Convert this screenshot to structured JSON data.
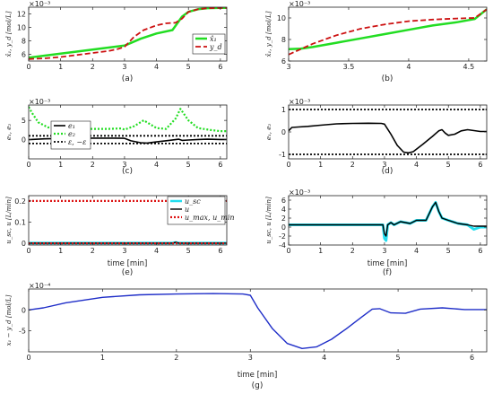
{
  "chart_data": [
    {
      "type": "line",
      "panel_label": "(a)",
      "exponent": "×10⁻³",
      "ylabel": "x̂₁, y_d  [mol/L]",
      "xlim": [
        0,
        6.2
      ],
      "ylim": [
        5,
        13
      ],
      "xticks": [
        0,
        1,
        2,
        3,
        4,
        5,
        6
      ],
      "yticks": [
        6,
        8,
        10,
        12
      ],
      "legend": "center-right",
      "series": [
        {
          "name": "x̂₁",
          "color": "#22dd22",
          "dash": "",
          "width": 2.5,
          "x": [
            0,
            0.5,
            1,
            1.5,
            2,
            2.5,
            3,
            3.2,
            3.5,
            4,
            4.5,
            4.65,
            4.8,
            5,
            5.3,
            5.6,
            6,
            6.2
          ],
          "y": [
            5.5,
            5.8,
            6.1,
            6.4,
            6.7,
            7.0,
            7.3,
            7.7,
            8.3,
            9.1,
            9.6,
            10.6,
            11.6,
            12.3,
            12.7,
            12.85,
            12.9,
            12.9
          ]
        },
        {
          "name": "y_d",
          "color": "#cc1111",
          "dash": "6,3",
          "width": 1.8,
          "x": [
            0,
            0.5,
            1,
            1.5,
            2,
            2.5,
            2.8,
            3,
            3.1,
            3.3,
            3.6,
            4,
            4.3,
            4.6,
            4.8,
            5,
            5.3,
            5.6,
            6,
            6.2
          ],
          "y": [
            5.3,
            5.4,
            5.6,
            5.9,
            6.2,
            6.5,
            6.8,
            7.1,
            7.6,
            8.6,
            9.6,
            10.3,
            10.6,
            10.7,
            11.3,
            12.3,
            12.7,
            12.85,
            12.9,
            12.9
          ]
        }
      ]
    },
    {
      "type": "line",
      "panel_label": "(b)",
      "exponent": "×10⁻³",
      "ylabel": "x̂₁, y_d  [mol/L]",
      "xlim": [
        3,
        4.65
      ],
      "ylim": [
        6,
        11
      ],
      "xticks": [
        3,
        3.5,
        4,
        4.5
      ],
      "yticks": [
        6,
        8,
        10
      ],
      "series": [
        {
          "name": "x̂₁",
          "color": "#22dd22",
          "dash": "",
          "width": 2.5,
          "x": [
            3,
            3.1,
            3.2,
            3.4,
            3.6,
            3.8,
            4,
            4.2,
            4.4,
            4.55,
            4.65
          ],
          "y": [
            7.1,
            7.15,
            7.3,
            7.7,
            8.1,
            8.5,
            8.9,
            9.3,
            9.6,
            9.9,
            10.8
          ]
        },
        {
          "name": "y_d",
          "color": "#cc1111",
          "dash": "6,3",
          "width": 1.8,
          "x": [
            3,
            3.1,
            3.2,
            3.4,
            3.6,
            3.8,
            4,
            4.2,
            4.4,
            4.55,
            4.65
          ],
          "y": [
            6.6,
            7.1,
            7.6,
            8.4,
            9.0,
            9.4,
            9.7,
            9.85,
            9.95,
            10.0,
            10.8
          ]
        }
      ]
    },
    {
      "type": "line",
      "panel_label": "(c)",
      "exponent": "×10⁻³",
      "ylabel": "e₁, e₂",
      "xlim": [
        0,
        6.2
      ],
      "ylim": [
        -5,
        9
      ],
      "xticks": [
        0,
        1,
        2,
        3,
        4,
        5,
        6
      ],
      "yticks": [
        0,
        5
      ],
      "legend": "top-left",
      "series": [
        {
          "name": "e₁",
          "color": "#000000",
          "dash": "",
          "width": 1.6,
          "x": [
            0,
            0.5,
            1,
            1.5,
            2,
            2.5,
            3,
            3.2,
            3.5,
            3.7,
            4,
            4.4,
            4.7,
            4.8,
            5,
            5.3,
            5.6,
            6,
            6.2
          ],
          "y": [
            0,
            0.2,
            0.3,
            0.35,
            0.4,
            0.4,
            0.35,
            -0.3,
            -0.8,
            -0.9,
            -0.6,
            -0.2,
            0.1,
            -0.2,
            -0.1,
            0.05,
            0.1,
            0.05,
            0.05
          ]
        },
        {
          "name": "e₂",
          "color": "#22dd22",
          "dash": "2,2",
          "width": 2.2,
          "x": [
            0,
            0.1,
            0.3,
            0.6,
            1,
            1.5,
            2,
            2.5,
            2.9,
            3,
            3.3,
            3.6,
            4,
            4.3,
            4.6,
            4.75,
            5,
            5.3,
            5.7,
            6,
            6.2
          ],
          "y": [
            8.5,
            7,
            4.5,
            3.2,
            2.9,
            2.8,
            2.8,
            2.8,
            2.9,
            2.6,
            3.5,
            5.0,
            3.0,
            2.8,
            5.5,
            8.0,
            5.0,
            3.0,
            2.5,
            2.2,
            2.2
          ]
        },
        {
          "name": "ε, −ε",
          "color": "#000000",
          "dash": "2,2",
          "width": 1.8,
          "x": [
            0,
            6.2
          ],
          "y": [
            1,
            1
          ]
        },
        {
          "name": "",
          "color": "#000000",
          "dash": "2,2",
          "width": 1.8,
          "x": [
            0,
            6.2
          ],
          "y": [
            -1,
            -1
          ]
        }
      ]
    },
    {
      "type": "line",
      "panel_label": "(d)",
      "exponent": "×10⁻³",
      "ylabel": "e₁, e₂",
      "xlim": [
        0,
        6.2
      ],
      "ylim": [
        -1.2,
        1.2
      ],
      "xticks": [
        0,
        1,
        2,
        3,
        4,
        5,
        6
      ],
      "yticks": [
        -1,
        0,
        1
      ],
      "series": [
        {
          "name": "e₁",
          "color": "#000000",
          "dash": "",
          "width": 1.6,
          "x": [
            0,
            0.1,
            0.3,
            0.6,
            1,
            1.5,
            2,
            2.5,
            2.9,
            3,
            3.2,
            3.4,
            3.6,
            3.75,
            3.9,
            4.2,
            4.5,
            4.7,
            4.8,
            4.9,
            5,
            5.2,
            5.4,
            5.6,
            6,
            6.2
          ],
          "y": [
            0.05,
            0.2,
            0.22,
            0.25,
            0.3,
            0.36,
            0.38,
            0.39,
            0.38,
            0.35,
            -0.1,
            -0.6,
            -0.9,
            -0.93,
            -0.88,
            -0.55,
            -0.2,
            0.05,
            0.1,
            -0.05,
            -0.15,
            -0.1,
            0.05,
            0.1,
            0.02,
            0.02
          ]
        },
        {
          "name": "ε",
          "color": "#000000",
          "dash": "2,2",
          "width": 1.8,
          "x": [
            0,
            6.2
          ],
          "y": [
            1,
            1
          ]
        },
        {
          "name": "−ε",
          "color": "#000000",
          "dash": "2,2",
          "width": 1.8,
          "x": [
            0,
            6.2
          ],
          "y": [
            -1,
            -1
          ]
        }
      ]
    },
    {
      "type": "line",
      "panel_label": "(e)",
      "exponent": "",
      "ylabel": "u_sc, u  [L/min]",
      "xlabel": "time [min]",
      "xlim": [
        0,
        6.2
      ],
      "ylim": [
        -0.008,
        0.225
      ],
      "xticks": [
        0,
        1,
        2,
        3,
        4,
        5,
        6
      ],
      "yticks": [
        0,
        0.1,
        0.2
      ],
      "legend": "right",
      "series": [
        {
          "name": "u_sc",
          "color": "#22ddee",
          "dash": "",
          "width": 3,
          "x": [
            0,
            3,
            3.05,
            3.1,
            4.5,
            4.6,
            4.7,
            6.2
          ],
          "y": [
            0.001,
            0.001,
            0.0,
            0.001,
            0.001,
            0.004,
            0.001,
            0.001
          ]
        },
        {
          "name": "u",
          "color": "#000000",
          "dash": "",
          "width": 1.4,
          "x": [
            0,
            3,
            3.05,
            3.1,
            4.5,
            4.6,
            4.7,
            6.2
          ],
          "y": [
            0.001,
            0.001,
            0.0,
            0.001,
            0.001,
            0.005,
            0.001,
            0.001
          ]
        },
        {
          "name": "u_max, u_min",
          "color": "#dd1111",
          "dash": "2,2",
          "width": 2.2,
          "x": [
            0,
            6.2
          ],
          "y": [
            0.2,
            0.2
          ]
        },
        {
          "name": "",
          "color": "#dd1111",
          "dash": "2,2",
          "width": 2.2,
          "x": [
            0,
            6.2
          ],
          "y": [
            0,
            0
          ]
        }
      ]
    },
    {
      "type": "line",
      "panel_label": "(f)",
      "exponent": "×10⁻³",
      "ylabel": "u_sc, u  [L/min]",
      "xlabel": "time [min]",
      "xlim": [
        0,
        6.2
      ],
      "ylim": [
        -4,
        7
      ],
      "xticks": [
        0,
        1,
        2,
        3,
        4,
        5,
        6
      ],
      "yticks": [
        -4,
        -2,
        0,
        2,
        4,
        6
      ],
      "series": [
        {
          "name": "u_sc",
          "color": "#22ddee",
          "dash": "",
          "width": 3,
          "x": [
            0,
            2.95,
            3.0,
            3.05,
            3.1,
            3.2,
            3.3,
            3.5,
            3.8,
            4.0,
            4.3,
            4.5,
            4.6,
            4.7,
            4.8,
            5.0,
            5.3,
            5.6,
            5.8,
            6.0,
            6.2
          ],
          "y": [
            0.5,
            0.5,
            -2.5,
            -3.0,
            0.5,
            1.0,
            0.5,
            1.2,
            0.8,
            1.5,
            1.5,
            4.5,
            5.5,
            3.5,
            2.0,
            1.5,
            0.8,
            0.5,
            -0.5,
            0,
            0
          ]
        },
        {
          "name": "u",
          "color": "#000000",
          "dash": "",
          "width": 1.4,
          "x": [
            0,
            2.95,
            3.0,
            3.05,
            3.1,
            3.2,
            3.3,
            3.5,
            3.8,
            4.0,
            4.3,
            4.5,
            4.6,
            4.7,
            4.8,
            5.0,
            5.3,
            5.6,
            5.8,
            6.0,
            6.2
          ],
          "y": [
            0.5,
            0.5,
            -1.5,
            -2.0,
            0.5,
            1.0,
            0.5,
            1.2,
            0.8,
            1.5,
            1.5,
            4.5,
            5.5,
            3.5,
            2.0,
            1.5,
            0.8,
            0.5,
            0.2,
            0.2,
            0.2
          ]
        }
      ]
    },
    {
      "type": "line",
      "panel_label": "(g)",
      "exponent": "×10⁻⁴",
      "ylabel": "x₁ − y_d  [mol/L]",
      "xlabel": "time [min]",
      "xlim": [
        0,
        6.2
      ],
      "ylim": [
        -10,
        5
      ],
      "xticks": [
        0,
        1,
        2,
        3,
        4,
        5,
        6
      ],
      "yticks": [
        -5,
        0
      ],
      "series": [
        {
          "name": "x₁ − y_d",
          "color": "#1f2ec8",
          "dash": "",
          "width": 1.4,
          "x": [
            0,
            0.2,
            0.5,
            1,
            1.5,
            2,
            2.5,
            2.9,
            3,
            3.1,
            3.3,
            3.5,
            3.7,
            3.9,
            4.1,
            4.3,
            4.5,
            4.65,
            4.75,
            4.9,
            5.1,
            5.3,
            5.6,
            5.9,
            6.2
          ],
          "y": [
            0,
            0.5,
            1.7,
            3.0,
            3.6,
            3.8,
            3.9,
            3.8,
            3.5,
            0.5,
            -4.5,
            -8.0,
            -9.2,
            -8.8,
            -7.0,
            -4.5,
            -1.8,
            0.2,
            0.3,
            -0.7,
            -0.8,
            0.2,
            0.5,
            0.1,
            0.1
          ]
        }
      ]
    }
  ]
}
